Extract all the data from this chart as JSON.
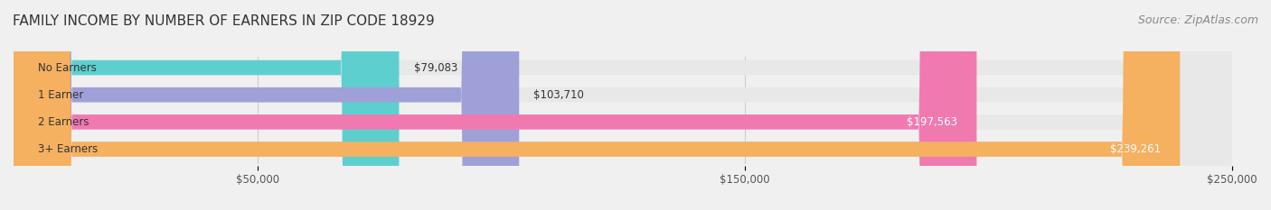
{
  "title": "FAMILY INCOME BY NUMBER OF EARNERS IN ZIP CODE 18929",
  "source": "Source: ZipAtlas.com",
  "categories": [
    "No Earners",
    "1 Earner",
    "2 Earners",
    "3+ Earners"
  ],
  "values": [
    79083,
    103710,
    197563,
    239261
  ],
  "bar_colors": [
    "#5ecfcf",
    "#a0a0d8",
    "#f07ab0",
    "#f5b060"
  ],
  "label_colors": [
    "#333333",
    "#333333",
    "#ffffff",
    "#ffffff"
  ],
  "value_labels": [
    "$79,083",
    "$103,710",
    "$197,563",
    "$239,261"
  ],
  "xlim": [
    0,
    250000
  ],
  "xticks": [
    50000,
    150000,
    250000
  ],
  "xticklabels": [
    "$50,000",
    "$150,000",
    "$250,000"
  ],
  "background_color": "#f0f0f0",
  "bar_bg_color": "#e8e8e8",
  "title_fontsize": 11,
  "source_fontsize": 9,
  "bar_height": 0.55,
  "figsize": [
    14.06,
    2.33
  ],
  "dpi": 100
}
